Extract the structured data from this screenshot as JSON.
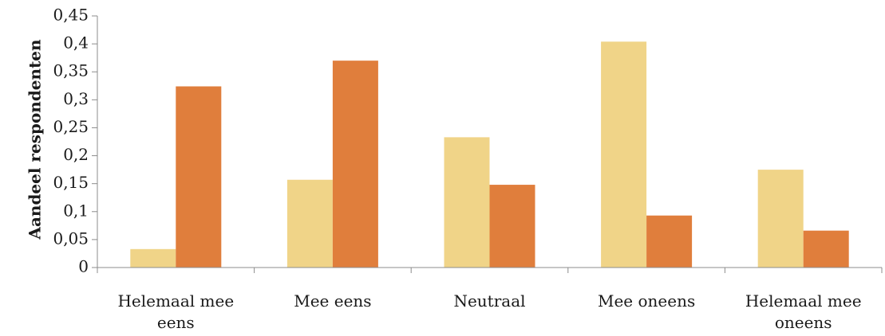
{
  "chart_data": {
    "type": "bar",
    "title": "",
    "xlabel": "",
    "ylabel": "Aandeel respondenten",
    "ylim": [
      0,
      0.45
    ],
    "yticks": [
      "0",
      "0,05",
      "0,1",
      "0,15",
      "0,2",
      "0,25",
      "0,3",
      "0,35",
      "0,4",
      "0,45"
    ],
    "categories": [
      [
        "Helemaal mee",
        "eens"
      ],
      [
        "Mee eens"
      ],
      [
        "Neutraal"
      ],
      [
        "Mee oneens"
      ],
      [
        "Helemaal mee",
        "oneens"
      ]
    ],
    "series": [
      {
        "color": "#f0d488",
        "values": [
          0.033,
          0.157,
          0.233,
          0.404,
          0.175
        ]
      },
      {
        "color": "#e07e3c",
        "values": [
          0.324,
          0.37,
          0.148,
          0.093,
          0.066
        ]
      }
    ],
    "grid": false,
    "legend": "none"
  }
}
